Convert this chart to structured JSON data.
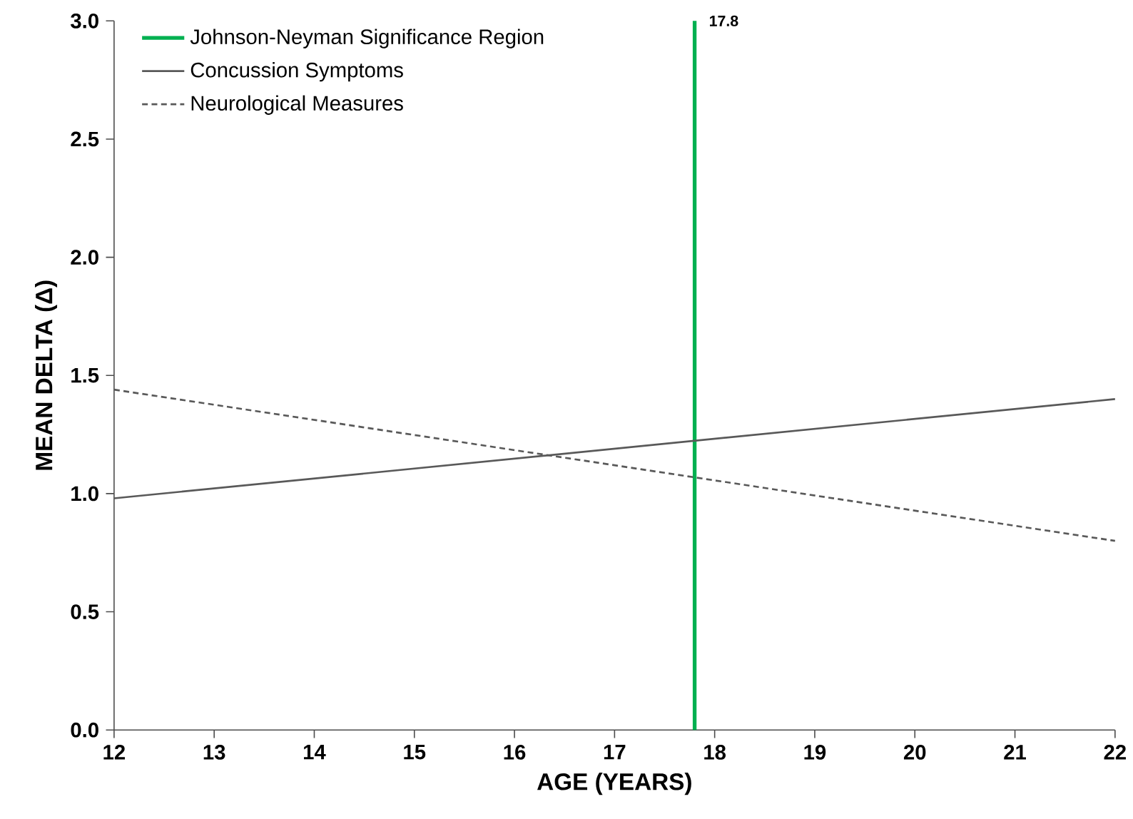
{
  "chart_data": {
    "type": "line",
    "xlabel": "AGE (YEARS)",
    "ylabel": "MEAN DELTA (Δ)",
    "x": [
      12,
      22
    ],
    "series": [
      {
        "name": "Johnson-Neyman Significance Region",
        "color": "#00b050",
        "x": [
          17.8,
          17.8
        ],
        "values": [
          0,
          3.0
        ]
      },
      {
        "name": "Concussion Symptoms",
        "color": "#595959",
        "values": [
          0.98,
          1.4
        ],
        "line_style": "solid"
      },
      {
        "name": "Neurological Measures",
        "color": "#595959",
        "values": [
          1.44,
          0.8
        ],
        "line_style": "dashed"
      }
    ],
    "xlim": [
      12,
      22
    ],
    "ylim": [
      0,
      3
    ],
    "xticks": [
      12,
      13,
      14,
      15,
      16,
      17,
      18,
      19,
      20,
      21,
      22
    ],
    "yticks": [
      {
        "value": 0,
        "label": "0.0"
      },
      {
        "value": 0.5,
        "label": "0.5"
      },
      {
        "value": 1,
        "label": "1.0"
      },
      {
        "value": 1.5,
        "label": "1.5"
      },
      {
        "value": 2,
        "label": "2.0"
      },
      {
        "value": 2.5,
        "label": "2.5"
      },
      {
        "value": 3,
        "label": "3.0"
      }
    ],
    "annotations": [
      {
        "text": "17.8",
        "x": 17.8,
        "y": 3.0
      }
    ],
    "legend": "top left",
    "marker": "none",
    "grid": false
  }
}
